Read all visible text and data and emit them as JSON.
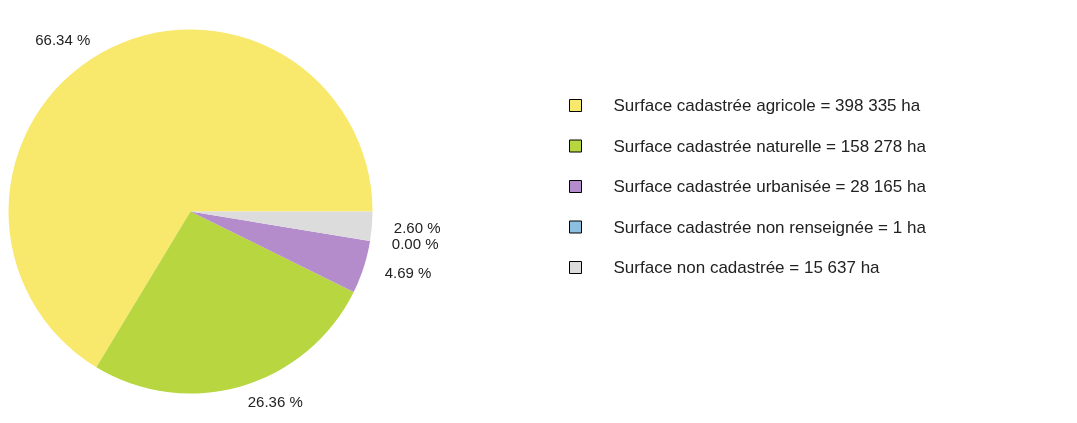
{
  "chart_data": {
    "type": "pie",
    "categories": [
      "Surface cadastrée agricole = 398 335 ha",
      "Surface cadastrée naturelle = 158 278 ha",
      "Surface cadastrée urbanisée = 28 165 ha",
      "Surface cadastrée non renseignée = 1 ha",
      "Surface non cadastrée = 15 637 ha"
    ],
    "values": [
      66.34,
      26.36,
      4.69,
      0.0,
      2.6
    ],
    "colors": [
      "#f8e86c",
      "#b8d640",
      "#b48ccc",
      "#8cc0e0",
      "#dcdcdc"
    ],
    "value_labels": [
      "66.34 %",
      "26.36 %",
      "4.69 %",
      "0.00 %",
      "2.60 %"
    ],
    "legend": "right"
  }
}
